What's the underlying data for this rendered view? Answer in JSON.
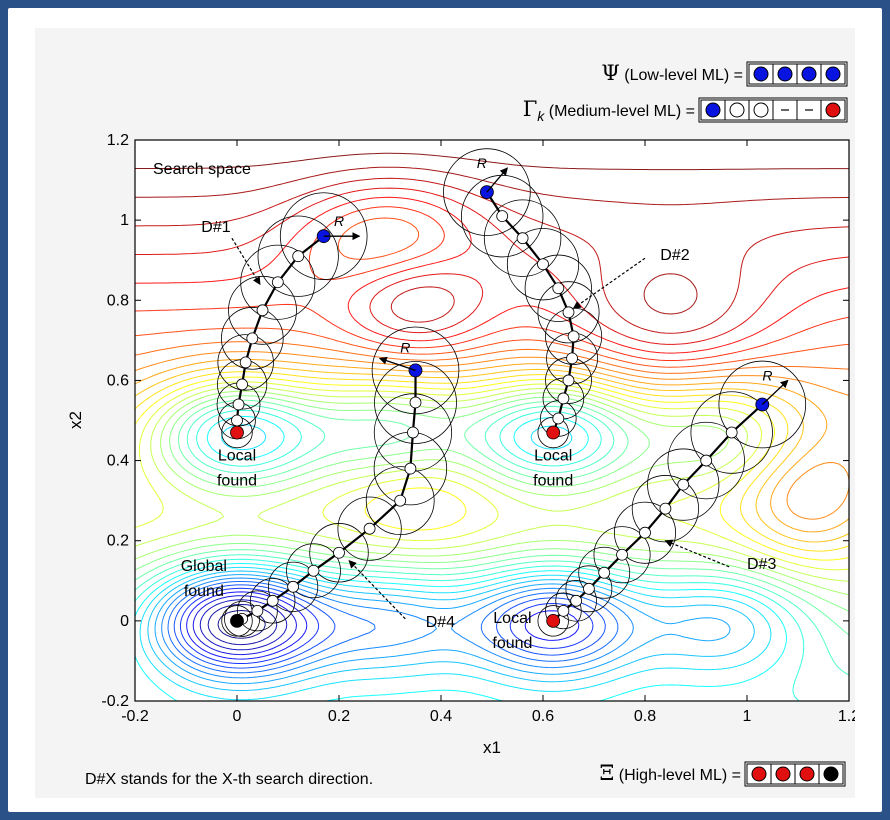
{
  "chart_data": {
    "type": "scatter",
    "xlabel": "x1",
    "ylabel": "x2",
    "xlim": [
      -0.2,
      1.2
    ],
    "ylim": [
      -0.2,
      1.2
    ],
    "xticks": [
      "-0.2",
      "0",
      "0.2",
      "0.4",
      "0.6",
      "0.8",
      "1",
      "1.2"
    ],
    "yticks": [
      "-0.2",
      "0",
      "0.2",
      "0.4",
      "0.6",
      "0.8",
      "1",
      "1.2"
    ],
    "grid": false,
    "background": "contour plot of objective function (jet colormap)",
    "text_labels": {
      "search_space": "Search space",
      "radius": "R",
      "local_found": [
        "Local",
        "found"
      ],
      "global_found": [
        "Global",
        "found"
      ]
    },
    "legend": {
      "psi_symbol": "Ψ",
      "psi_text": " (Low-level ML) =",
      "psi_cells": [
        "blue",
        "blue",
        "blue",
        "blue"
      ],
      "gamma_symbol": "Γ",
      "gamma_sub": "k",
      "gamma_text": " (Medium-level ML) =",
      "gamma_cells": [
        "blue",
        "white",
        "white",
        "dash",
        "dash",
        "red"
      ],
      "xi_symbol": "Ξ",
      "xi_text": " (High-level ML) =",
      "xi_cells": [
        "red",
        "red",
        "red",
        "black"
      ]
    },
    "footnote": "D#X stands for the X-th search direction.",
    "series": [
      {
        "name": "D#1",
        "start": [
          0.17,
          0.96
        ],
        "end": [
          0.0,
          0.47
        ],
        "end_type": "local",
        "points": [
          [
            0.17,
            0.96
          ],
          [
            0.12,
            0.91
          ],
          [
            0.08,
            0.845
          ],
          [
            0.05,
            0.775
          ],
          [
            0.03,
            0.705
          ],
          [
            0.017,
            0.645
          ],
          [
            0.01,
            0.59
          ],
          [
            0.003,
            0.54
          ],
          [
            0.0,
            0.5
          ],
          [
            0.0,
            0.47
          ]
        ]
      },
      {
        "name": "D#2",
        "start": [
          0.49,
          1.07
        ],
        "end": [
          0.62,
          0.47
        ],
        "end_type": "local",
        "points": [
          [
            0.49,
            1.07
          ],
          [
            0.52,
            1.01
          ],
          [
            0.56,
            0.955
          ],
          [
            0.6,
            0.89
          ],
          [
            0.63,
            0.83
          ],
          [
            0.65,
            0.77
          ],
          [
            0.66,
            0.71
          ],
          [
            0.657,
            0.655
          ],
          [
            0.65,
            0.6
          ],
          [
            0.64,
            0.555
          ],
          [
            0.63,
            0.505
          ],
          [
            0.62,
            0.47
          ]
        ]
      },
      {
        "name": "D#3",
        "start": [
          1.03,
          0.54
        ],
        "end": [
          0.62,
          0.0
        ],
        "end_type": "local",
        "points": [
          [
            1.03,
            0.54
          ],
          [
            0.97,
            0.47
          ],
          [
            0.92,
            0.4
          ],
          [
            0.875,
            0.34
          ],
          [
            0.84,
            0.28
          ],
          [
            0.8,
            0.22
          ],
          [
            0.755,
            0.165
          ],
          [
            0.72,
            0.12
          ],
          [
            0.69,
            0.08
          ],
          [
            0.665,
            0.05
          ],
          [
            0.64,
            0.025
          ],
          [
            0.62,
            0.0
          ]
        ]
      },
      {
        "name": "D#4",
        "start": [
          0.35,
          0.625
        ],
        "end": [
          0.0,
          0.0
        ],
        "end_type": "global",
        "points": [
          [
            0.35,
            0.625
          ],
          [
            0.35,
            0.545
          ],
          [
            0.345,
            0.47
          ],
          [
            0.34,
            0.38
          ],
          [
            0.32,
            0.3
          ],
          [
            0.26,
            0.23
          ],
          [
            0.2,
            0.17
          ],
          [
            0.15,
            0.125
          ],
          [
            0.11,
            0.085
          ],
          [
            0.07,
            0.05
          ],
          [
            0.04,
            0.025
          ],
          [
            0.01,
            0.005
          ],
          [
            0.0,
            0.0
          ]
        ]
      }
    ]
  }
}
